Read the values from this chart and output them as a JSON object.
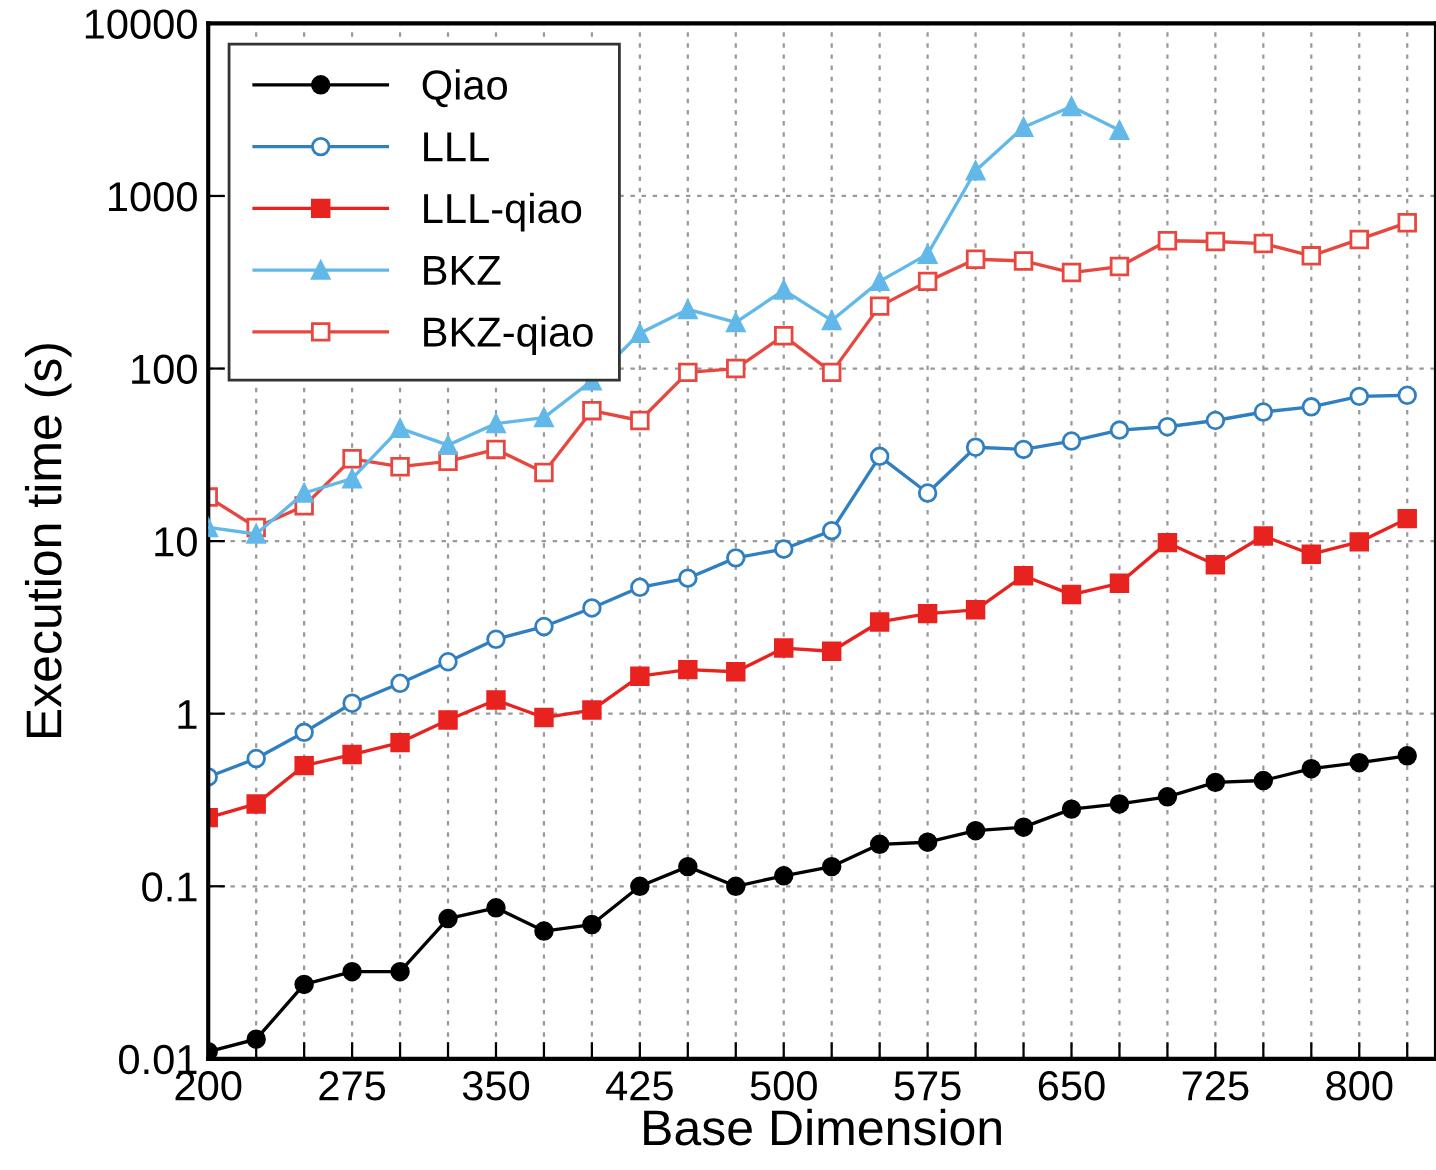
{
  "chart_data": {
    "type": "line",
    "xlabel": "Base Dimension",
    "ylabel": "Execution time (s)",
    "log": "y",
    "grid": true,
    "legend": "top left",
    "xlim": [
      200,
      840
    ],
    "ylim": [
      0.01,
      10000
    ],
    "x": [
      200,
      225,
      250,
      275,
      300,
      325,
      350,
      375,
      400,
      425,
      450,
      475,
      500,
      525,
      550,
      575,
      600,
      625,
      650,
      675,
      700,
      725,
      750,
      775,
      800,
      825
    ],
    "xticks": [
      200,
      {
        "value": 225,
        "label": null
      },
      {
        "value": 250,
        "label": null
      },
      275,
      {
        "value": 300,
        "label": null
      },
      {
        "value": 325,
        "label": null
      },
      350,
      {
        "value": 375,
        "label": null
      },
      {
        "value": 400,
        "label": null
      },
      425,
      {
        "value": 450,
        "label": null
      },
      {
        "value": 475,
        "label": null
      },
      500,
      {
        "value": 525,
        "label": null
      },
      {
        "value": 550,
        "label": null
      },
      575,
      {
        "value": 600,
        "label": null
      },
      {
        "value": 625,
        "label": null
      },
      650,
      {
        "value": 675,
        "label": null
      },
      {
        "value": 700,
        "label": null
      },
      725,
      {
        "value": 750,
        "label": null
      },
      {
        "value": 775,
        "label": null
      },
      800,
      {
        "value": 825,
        "label": null
      }
    ],
    "yticks": [
      0.01,
      0.1,
      1,
      10,
      100,
      1000,
      10000
    ],
    "series": [
      {
        "name": "Qiao",
        "color": "#000000",
        "marker": "circle",
        "values": [
          0.011,
          0.013,
          0.027,
          0.032,
          0.032,
          0.065,
          0.075,
          0.055,
          0.06,
          0.1,
          0.13,
          0.1,
          0.115,
          0.13,
          0.175,
          0.18,
          0.21,
          0.22,
          0.28,
          0.3,
          0.33,
          0.4,
          0.41,
          0.48,
          0.52,
          0.57
        ]
      },
      {
        "name": "LLL",
        "color": "#2f7fc1",
        "marker": "circle",
        "values": [
          0.43,
          0.55,
          0.78,
          1.15,
          1.5,
          2.0,
          2.7,
          3.2,
          4.1,
          5.4,
          6.1,
          8,
          9,
          11.5,
          31,
          19,
          35,
          34,
          38,
          44,
          46,
          50,
          56,
          60,
          69,
          70
        ]
      },
      {
        "name": "LLL-qiao",
        "color": "#e8231f",
        "marker": "square",
        "values": [
          0.25,
          0.3,
          0.5,
          0.58,
          0.68,
          0.92,
          1.2,
          0.95,
          1.05,
          1.65,
          1.8,
          1.75,
          2.4,
          2.3,
          3.4,
          3.8,
          4,
          6.3,
          4.9,
          5.7,
          9.8,
          7.3,
          10.7,
          8.4,
          9.9,
          13.5
        ]
      },
      {
        "name": "BKZ",
        "color": "#62b8e8",
        "marker": "triangle",
        "x": [
          200,
          225,
          250,
          275,
          300,
          325,
          350,
          375,
          400,
          425,
          450,
          475,
          500,
          525,
          550,
          575,
          600,
          625,
          650,
          675
        ],
        "values": [
          12,
          11,
          19,
          23,
          45,
          36,
          48,
          52,
          85,
          160,
          220,
          185,
          285,
          190,
          320,
          460,
          1400,
          2500,
          3300,
          2400
        ]
      },
      {
        "name": "BKZ-qiao",
        "color": "#e8473f",
        "marker": "square",
        "values": [
          18,
          12,
          16,
          30,
          27,
          29,
          34,
          25,
          57,
          50,
          95,
          100,
          155,
          95,
          230,
          320,
          430,
          420,
          360,
          390,
          550,
          545,
          530,
          450,
          560,
          700
        ]
      }
    ]
  }
}
